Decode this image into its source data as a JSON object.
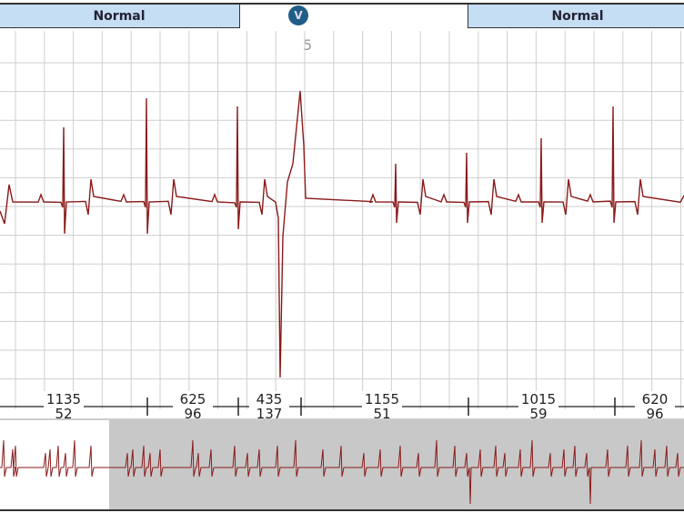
{
  "header": {
    "left_label": "Normal",
    "right_label": "Normal",
    "badge": "V",
    "beat_number": "5"
  },
  "colors": {
    "trace": "#8b1a1a",
    "grid": "#cfcfcf",
    "header_bg": "#c5def3",
    "badge": "#1f5d86",
    "overview_bg": "#c8c8c8"
  },
  "intervals": [
    {
      "rr": "1135",
      "hr": "52"
    },
    {
      "rr": "625",
      "hr": "96"
    },
    {
      "rr": "435",
      "hr": "137"
    },
    {
      "rr": "1155",
      "hr": "51"
    },
    {
      "rr": "1015",
      "hr": "59"
    },
    {
      "rr": "620",
      "hr": "96"
    }
  ]
}
